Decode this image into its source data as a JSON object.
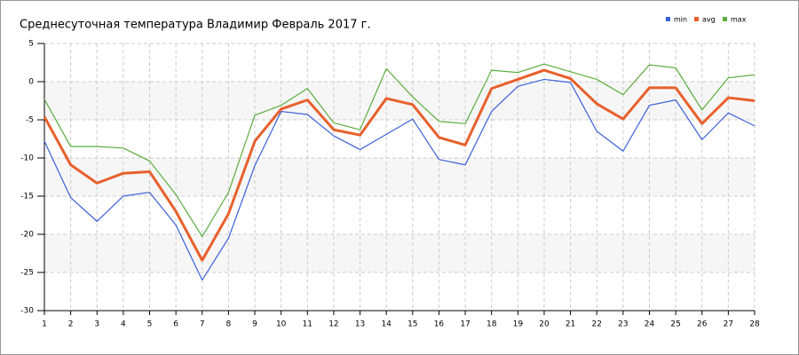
{
  "chart_data": {
    "type": "line",
    "title": "Среднесуточная температура Владимир  Февраль 2017 г.",
    "x": [
      1,
      2,
      3,
      4,
      5,
      6,
      7,
      8,
      9,
      10,
      11,
      12,
      13,
      14,
      15,
      16,
      17,
      18,
      19,
      20,
      21,
      22,
      23,
      24,
      25,
      26,
      27,
      28
    ],
    "xlim": [
      1,
      28
    ],
    "ylim": [
      -30,
      5
    ],
    "yticks": [
      -30,
      -25,
      -20,
      -15,
      -10,
      -5,
      0,
      5
    ],
    "grid": true,
    "legend": "top-right",
    "series": [
      {
        "name": "min",
        "color": "#3a5fd9",
        "values": [
          -7.8,
          -15.2,
          -18.3,
          -15,
          -14.5,
          -18.8,
          -26,
          -20.5,
          -11,
          -3.9,
          -4.3,
          -7.1,
          -8.9,
          -6.9,
          -4.9,
          -10.2,
          -10.9,
          -3.9,
          -0.6,
          0.3,
          -0.1,
          -6.5,
          -9.1,
          -3.1,
          -2.4,
          -7.6,
          -4.1,
          -5.8
        ]
      },
      {
        "name": "avg",
        "color": "#e8602c",
        "values": [
          -4.6,
          -10.9,
          -13.3,
          -12,
          -11.8,
          -17,
          -23.4,
          -17.3,
          -7.8,
          -3.6,
          -2.4,
          -6.3,
          -7,
          -2.2,
          -3,
          -7.3,
          -8.3,
          -0.9,
          0.3,
          1.5,
          0.4,
          -2.9,
          -4.9,
          -0.8,
          -0.8,
          -5.5,
          -2.1,
          -2.5
        ]
      },
      {
        "name": "max",
        "color": "#5aad3c",
        "values": [
          -2.3,
          -8.5,
          -8.5,
          -8.7,
          -10.4,
          -14.8,
          -20.3,
          -14.5,
          -4.4,
          -3.1,
          -0.9,
          -5.4,
          -6.3,
          1.7,
          -2,
          -5.2,
          -5.5,
          1.5,
          1.2,
          2.3,
          1.3,
          0.3,
          -1.7,
          2.2,
          1.8,
          -3.7,
          0.5,
          0.9
        ]
      }
    ]
  }
}
